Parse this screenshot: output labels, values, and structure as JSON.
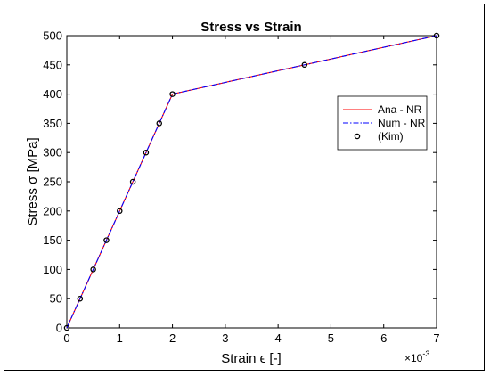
{
  "chart_data": {
    "type": "line",
    "title": "Stress vs Strain",
    "xlabel": "Strain ϵ [-]",
    "ylabel": "Stress σ [MPa]",
    "x_multiplier_label": "×10",
    "x_multiplier_exponent": "-3",
    "x_scale": 0.001,
    "xlim": [
      0,
      7
    ],
    "ylim": [
      0,
      500
    ],
    "xticks": [
      0,
      1,
      2,
      3,
      4,
      5,
      6,
      7
    ],
    "yticks": [
      0,
      50,
      100,
      150,
      200,
      250,
      300,
      350,
      400,
      450,
      500
    ],
    "grid": false,
    "legend_position": "right",
    "series": [
      {
        "name": "Ana - NR",
        "style": "solid",
        "color": "#ff0000",
        "x": [
          0,
          2,
          7
        ],
        "y": [
          0,
          400,
          500
        ]
      },
      {
        "name": "Num - NR",
        "style": "dashdot",
        "color": "#0000ff",
        "x": [
          0,
          2,
          7
        ],
        "y": [
          0,
          400,
          500
        ]
      },
      {
        "name": "(Kim)",
        "style": "markers",
        "marker": "circle",
        "color": "#000000",
        "x": [
          0,
          0.25,
          0.5,
          0.75,
          1.0,
          1.25,
          1.5,
          1.75,
          2.0,
          4.5,
          7.0
        ],
        "y": [
          0,
          50,
          100,
          150,
          200,
          250,
          300,
          350,
          400,
          450,
          500
        ]
      }
    ]
  }
}
